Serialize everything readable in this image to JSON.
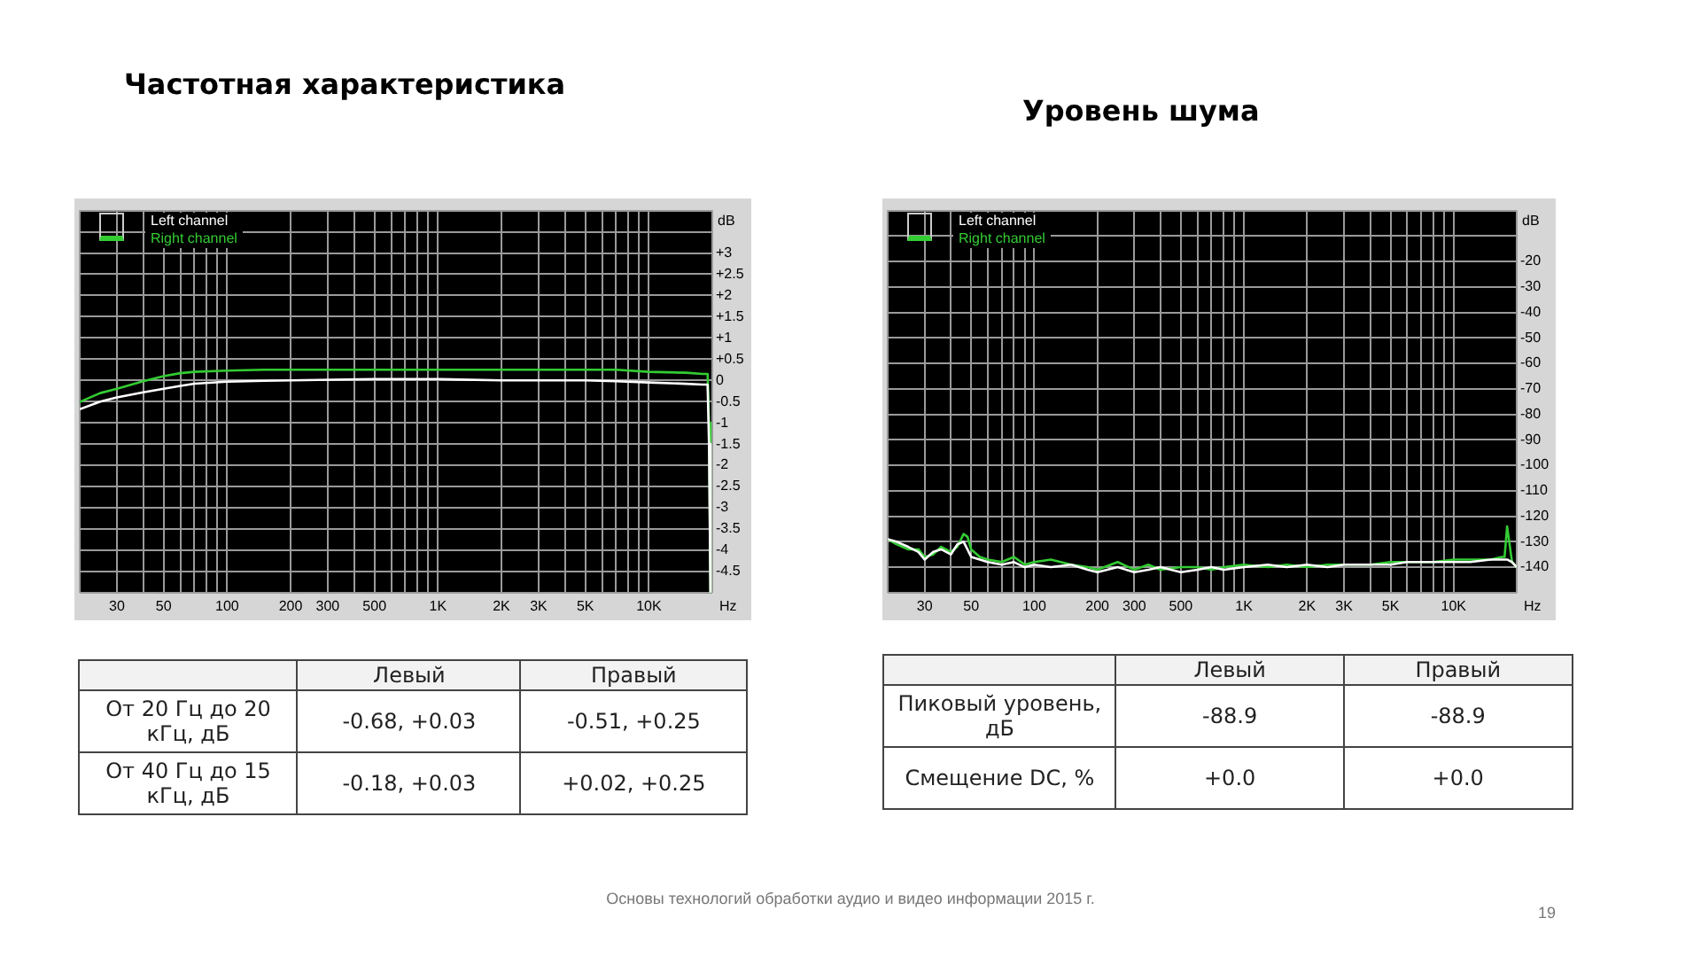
{
  "chart_data": [
    {
      "type": "line",
      "title": "Частотная характеристика",
      "ylabel": "dB",
      "xlabel": "Hz",
      "log": "x",
      "grid": true,
      "legend": "top left",
      "marker": "none",
      "x": [
        20,
        25,
        30,
        40,
        50,
        60,
        70,
        100,
        150,
        200,
        500,
        1000,
        2000,
        5000,
        7000,
        10000,
        15000,
        18000,
        19000,
        19300,
        19600
      ],
      "series": [
        {
          "name": "Left channel",
          "color": "#ffffff",
          "values": [
            -0.68,
            -0.5,
            -0.4,
            -0.28,
            -0.2,
            -0.13,
            -0.08,
            -0.03,
            -0.01,
            0,
            0.03,
            0.03,
            0,
            0,
            -0.02,
            -0.05,
            -0.08,
            -0.1,
            -0.1,
            -1.5,
            -5
          ]
        },
        {
          "name": "Right channel",
          "color": "#33cc33",
          "values": [
            -0.51,
            -0.3,
            -0.2,
            -0.02,
            0.1,
            0.17,
            0.2,
            0.23,
            0.25,
            0.25,
            0.25,
            0.25,
            0.25,
            0.25,
            0.25,
            0.2,
            0.18,
            0.15,
            0.15,
            -1,
            -5
          ]
        }
      ],
      "xlim": [
        20,
        20000
      ],
      "xticks": [
        {
          "value": 20,
          "label": null
        },
        {
          "value": 30,
          "label": "30"
        },
        {
          "value": 40,
          "label": null
        },
        {
          "value": 50,
          "label": "50"
        },
        {
          "value": 60,
          "label": null
        },
        {
          "value": 70,
          "label": null
        },
        {
          "value": 80,
          "label": null
        },
        {
          "value": 90,
          "label": null
        },
        {
          "value": 100,
          "label": "100"
        },
        {
          "value": 200,
          "label": "200"
        },
        {
          "value": 300,
          "label": "300"
        },
        {
          "value": 400,
          "label": null
        },
        {
          "value": 500,
          "label": "500"
        },
        {
          "value": 600,
          "label": null
        },
        {
          "value": 700,
          "label": null
        },
        {
          "value": 800,
          "label": null
        },
        {
          "value": 900,
          "label": null
        },
        {
          "value": 1000,
          "label": "1K"
        },
        {
          "value": 2000,
          "label": "2K"
        },
        {
          "value": 3000,
          "label": "3K"
        },
        {
          "value": 4000,
          "label": null
        },
        {
          "value": 5000,
          "label": "5K"
        },
        {
          "value": 6000,
          "label": null
        },
        {
          "value": 7000,
          "label": null
        },
        {
          "value": 8000,
          "label": null
        },
        {
          "value": 9000,
          "label": null
        },
        {
          "value": 10000,
          "label": "10K"
        },
        {
          "value": 20000,
          "label": null
        }
      ],
      "ylim": [
        -5,
        4
      ],
      "yticks": [
        {
          "value": -5,
          "label": null
        },
        {
          "value": -4.5,
          "label": "-4.5"
        },
        {
          "value": -4,
          "label": "-4"
        },
        {
          "value": -3.5,
          "label": "-3.5"
        },
        {
          "value": -3,
          "label": "-3"
        },
        {
          "value": -2.5,
          "label": "-2.5"
        },
        {
          "value": -2,
          "label": "-2"
        },
        {
          "value": -1.5,
          "label": "-1.5"
        },
        {
          "value": -1,
          "label": "-1"
        },
        {
          "value": -0.5,
          "label": "-0.5"
        },
        {
          "value": 0,
          "label": "0"
        },
        {
          "value": 0.5,
          "label": "+0.5"
        },
        {
          "value": 1,
          "label": "+1"
        },
        {
          "value": 1.5,
          "label": "+1.5"
        },
        {
          "value": 2,
          "label": "+2"
        },
        {
          "value": 2.5,
          "label": "+2.5"
        },
        {
          "value": 3,
          "label": "+3"
        },
        {
          "value": 3.5,
          "label": null
        },
        {
          "value": 4,
          "label": null
        }
      ],
      "annotations": [
        "Левый",
        "Правый",
        "От 20 Гц до 20 кГц, дБ",
        "-0.68, +0.03",
        "-0.51, +0.25",
        "От 40 Гц до 15 кГц, дБ",
        "-0.18, +0.03",
        "+0.02, +0.25"
      ]
    },
    {
      "type": "line",
      "title": "Уровень шума",
      "ylabel": "dB",
      "xlabel": "Hz",
      "log": "x",
      "grid": true,
      "legend": "top left",
      "marker": "none",
      "x": [
        20,
        22,
        25,
        28,
        30,
        33,
        36,
        40,
        43,
        46,
        48,
        50,
        55,
        60,
        70,
        80,
        90,
        100,
        120,
        150,
        180,
        200,
        250,
        300,
        350,
        400,
        500,
        600,
        700,
        800,
        1000,
        1300,
        1600,
        2000,
        2500,
        3000,
        4000,
        5000,
        6000,
        8000,
        10000,
        12000,
        15000,
        17000,
        17500,
        18000,
        19000,
        20000
      ],
      "series": [
        {
          "name": "Left channel",
          "color": "#ffffff",
          "values": [
            -129,
            -130,
            -132,
            -134,
            -137,
            -134,
            -133,
            -135,
            -131,
            -130,
            -133,
            -136,
            -137,
            -138,
            -139,
            -138,
            -140,
            -139,
            -140,
            -139,
            -141,
            -142,
            -140,
            -142,
            -141,
            -140,
            -142,
            -141,
            -140,
            -141,
            -140,
            -139,
            -140,
            -139,
            -140,
            -139,
            -139,
            -139,
            -138,
            -138,
            -138,
            -138,
            -137,
            -137,
            -137,
            -137,
            -138,
            -140
          ]
        },
        {
          "name": "Right channel",
          "color": "#33cc33",
          "values": [
            -129,
            -131,
            -133,
            -133,
            -136,
            -135,
            -132,
            -134,
            -132,
            -127,
            -128,
            -133,
            -136,
            -137,
            -138,
            -136,
            -139,
            -138,
            -137,
            -139,
            -140,
            -141,
            -138,
            -141,
            -139,
            -141,
            -140,
            -140,
            -141,
            -140,
            -139,
            -140,
            -139,
            -140,
            -139,
            -139,
            -139,
            -138,
            -138,
            -138,
            -137,
            -137,
            -137,
            -136,
            -136,
            -124,
            -138,
            -140
          ]
        }
      ],
      "xlim": [
        20,
        20000
      ],
      "xticks": [
        {
          "value": 20,
          "label": null
        },
        {
          "value": 30,
          "label": "30"
        },
        {
          "value": 40,
          "label": null
        },
        {
          "value": 50,
          "label": "50"
        },
        {
          "value": 60,
          "label": null
        },
        {
          "value": 70,
          "label": null
        },
        {
          "value": 80,
          "label": null
        },
        {
          "value": 90,
          "label": null
        },
        {
          "value": 100,
          "label": "100"
        },
        {
          "value": 200,
          "label": "200"
        },
        {
          "value": 300,
          "label": "300"
        },
        {
          "value": 400,
          "label": null
        },
        {
          "value": 500,
          "label": "500"
        },
        {
          "value": 600,
          "label": null
        },
        {
          "value": 700,
          "label": null
        },
        {
          "value": 800,
          "label": null
        },
        {
          "value": 900,
          "label": null
        },
        {
          "value": 1000,
          "label": "1K"
        },
        {
          "value": 2000,
          "label": "2K"
        },
        {
          "value": 3000,
          "label": "3K"
        },
        {
          "value": 4000,
          "label": null
        },
        {
          "value": 5000,
          "label": "5K"
        },
        {
          "value": 6000,
          "label": null
        },
        {
          "value": 7000,
          "label": null
        },
        {
          "value": 8000,
          "label": null
        },
        {
          "value": 9000,
          "label": null
        },
        {
          "value": 10000,
          "label": "10K"
        },
        {
          "value": 20000,
          "label": null
        }
      ],
      "ylim": [
        -150,
        0
      ],
      "yticks": [
        {
          "value": -150,
          "label": null
        },
        {
          "value": -140,
          "label": "-140"
        },
        {
          "value": -130,
          "label": "-130"
        },
        {
          "value": -120,
          "label": "-120"
        },
        {
          "value": -110,
          "label": "-110"
        },
        {
          "value": -100,
          "label": "-100"
        },
        {
          "value": -90,
          "label": "-90"
        },
        {
          "value": -80,
          "label": "-80"
        },
        {
          "value": -70,
          "label": "-70"
        },
        {
          "value": -60,
          "label": "-60"
        },
        {
          "value": -50,
          "label": "-50"
        },
        {
          "value": -40,
          "label": "-40"
        },
        {
          "value": -30,
          "label": "-30"
        },
        {
          "value": -20,
          "label": "-20"
        },
        {
          "value": -10,
          "label": null
        },
        {
          "value": 0,
          "label": null
        }
      ],
      "annotations": [
        "Левый",
        "Правый",
        "Пиковый уровень, дБ",
        "-88.9",
        "-88.9",
        "Смещение DC, %",
        "+0.0",
        "+0.0"
      ]
    },
    {
      "type": "other",
      "annotations": [
        "Основы технологий обработки аудио и видео информации 2015 г.",
        "19"
      ]
    }
  ]
}
